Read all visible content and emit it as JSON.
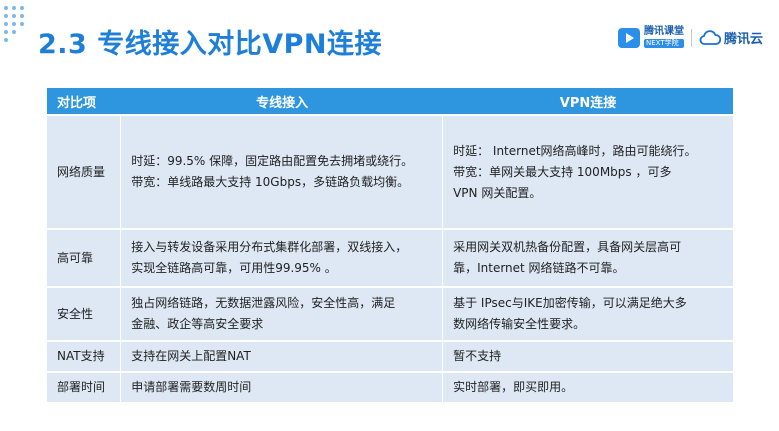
{
  "slide": {
    "title": "2.3 专线接入对比VPN连接",
    "logos": {
      "edu_name": "腾讯课堂",
      "edu_sub": "NEXT学院",
      "cloud_name": "腾讯云"
    }
  },
  "table": {
    "headers": [
      "对比项",
      "专线接入",
      "VPN连接"
    ],
    "rows": [
      {
        "item": "网络质量",
        "dedicated": [
          "时延：99.5% 保障，固定路由配置免去拥堵或绕行。",
          "带宽：单线路最大支持 10Gbps，多链路负载均衡。"
        ],
        "vpn": [
          "时延： Internet网络高峰时，路由可能绕行。",
          "带宽：单网关最大支持 100Mbps ，可多",
          "VPN 网关配置。"
        ]
      },
      {
        "item": "高可靠",
        "dedicated": [
          "接入与转发设备采用分布式集群化部署，双线接入，",
          "实现全链路高可靠，可用性99.95% 。"
        ],
        "vpn": [
          "采用网关双机热备份配置，具备网关层高可",
          "靠，Internet 网络链路不可靠。"
        ]
      },
      {
        "item": "安全性",
        "dedicated": [
          "独占网络链路，无数据泄露风险，安全性高，满足",
          "金融、政企等高安全要求"
        ],
        "vpn": [
          "基于 IPsec与IKE加密传输，可以满足绝大多",
          "数网络传输安全性要求。"
        ]
      },
      {
        "item": "NAT支持",
        "dedicated": [
          "支持在网关上配置NAT"
        ],
        "vpn": [
          "暂不支持"
        ]
      },
      {
        "item": "部署时间",
        "dedicated": [
          "申请部署需要数周时间"
        ],
        "vpn": [
          "实时部署，即买即用。"
        ]
      }
    ]
  },
  "colors": {
    "title": "#1e7fd8",
    "header_bg": "#2e96de",
    "cell_bg": "#dde8f4"
  },
  "icons": [
    "dot-pattern-icon",
    "tencent-classroom-logo-icon",
    "tencent-cloud-logo-icon"
  ]
}
